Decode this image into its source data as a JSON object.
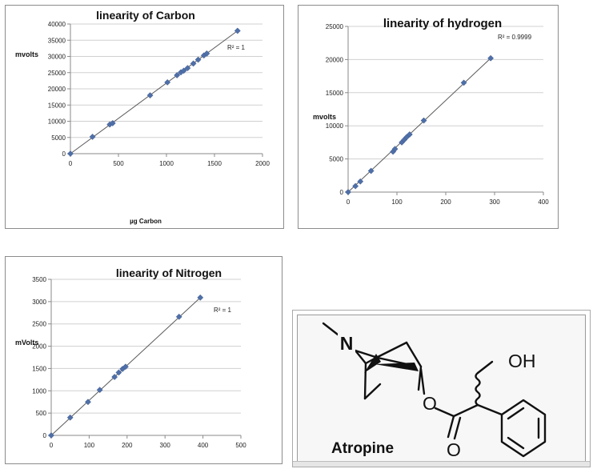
{
  "chart_data": [
    {
      "type": "scatter",
      "title": "linearity of Carbon",
      "xlabel": "µg Carbon",
      "ylabel": "mvolts",
      "xlim": [
        0,
        2000
      ],
      "ylim": [
        0,
        40000
      ],
      "xticks": [
        "0",
        "500",
        "1000",
        "1500",
        "2000"
      ],
      "yticks": [
        "0",
        "5000",
        "10000",
        "15000",
        "20000",
        "25000",
        "30000",
        "35000",
        "40000"
      ],
      "annotation": "R² = 1",
      "marker_color": "#4f6fa8",
      "gridlines": true,
      "trendline": [
        [
          0,
          0
        ],
        [
          1740,
          37900
        ]
      ],
      "points": [
        [
          0,
          0
        ],
        [
          230,
          5200
        ],
        [
          410,
          9000
        ],
        [
          440,
          9400
        ],
        [
          830,
          18000
        ],
        [
          1010,
          22000
        ],
        [
          1110,
          24200
        ],
        [
          1150,
          25100
        ],
        [
          1180,
          25600
        ],
        [
          1220,
          26400
        ],
        [
          1280,
          27800
        ],
        [
          1330,
          29000
        ],
        [
          1390,
          30300
        ],
        [
          1420,
          30900
        ],
        [
          1740,
          37900
        ]
      ]
    },
    {
      "type": "scatter",
      "title": "linearity of hydrogen",
      "xlabel": "",
      "ylabel": "mvolts",
      "xlim": [
        0,
        400
      ],
      "ylim": [
        0,
        25000
      ],
      "xticks": [
        "0",
        "100",
        "200",
        "300",
        "400"
      ],
      "yticks": [
        "0",
        "5000",
        "10000",
        "15000",
        "20000",
        "25000"
      ],
      "annotation": "R² = 0.9999",
      "marker_color": "#4f6fa8",
      "gridlines": true,
      "trendline": [
        [
          0,
          0
        ],
        [
          292,
          20200
        ]
      ],
      "points": [
        [
          0,
          0
        ],
        [
          15,
          900
        ],
        [
          25,
          1600
        ],
        [
          47,
          3200
        ],
        [
          92,
          6100
        ],
        [
          96,
          6500
        ],
        [
          110,
          7500
        ],
        [
          115,
          7900
        ],
        [
          120,
          8300
        ],
        [
          126,
          8700
        ],
        [
          155,
          10800
        ],
        [
          237,
          16500
        ],
        [
          292,
          20200
        ]
      ]
    },
    {
      "type": "scatter",
      "title": "linearity of Nitrogen",
      "xlabel": "",
      "ylabel": "mVolts",
      "xlim": [
        0,
        500
      ],
      "ylim": [
        0,
        3500
      ],
      "xticks": [
        "0",
        "100",
        "200",
        "300",
        "400",
        "500"
      ],
      "yticks": [
        "0",
        "500",
        "1000",
        "1500",
        "2000",
        "2500",
        "3000",
        "3500"
      ],
      "annotation": "R² = 1",
      "marker_color": "#4f6fa8",
      "gridlines": true,
      "trendline": [
        [
          0,
          0
        ],
        [
          393,
          3090
        ]
      ],
      "points": [
        [
          0,
          0
        ],
        [
          50,
          400
        ],
        [
          97,
          750
        ],
        [
          128,
          1020
        ],
        [
          167,
          1310
        ],
        [
          178,
          1410
        ],
        [
          188,
          1490
        ],
        [
          196,
          1540
        ],
        [
          337,
          2660
        ],
        [
          393,
          3090
        ]
      ]
    }
  ],
  "structure": {
    "label": "Atropine",
    "n_label": "N",
    "oh_label": "OH",
    "o_label": "O",
    "carbonyl_o_label": "O"
  }
}
